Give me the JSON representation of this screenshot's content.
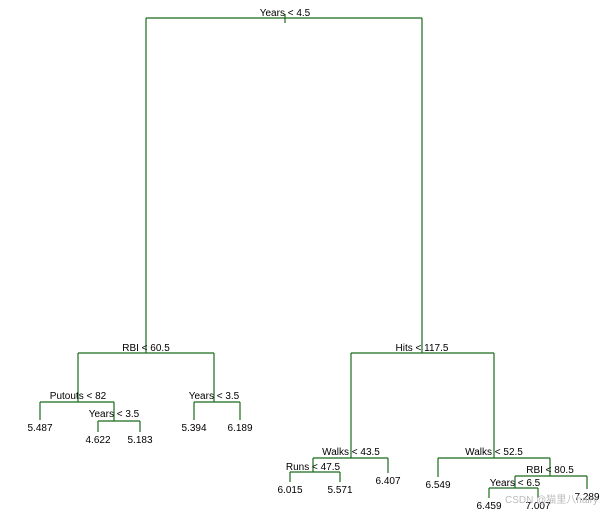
{
  "splits": [
    "Years < 4.5",
    "RBI < 60.5",
    "Putouts < 82",
    "Years < 3.5",
    "Years < 3.5",
    "Hits < 117.5",
    "Walks < 43.5",
    "Runs < 47.5",
    "Walks < 52.5",
    "RBI < 80.5",
    "Years < 6.5"
  ],
  "leaves": [
    "5.487",
    "4.622",
    "5.183",
    "5.394",
    "6.189",
    "6.015",
    "5.571",
    "6.407",
    "6.549",
    "6.459",
    "7.007",
    "7.289"
  ],
  "watermark": "CSDN @猫里八hairy"
}
